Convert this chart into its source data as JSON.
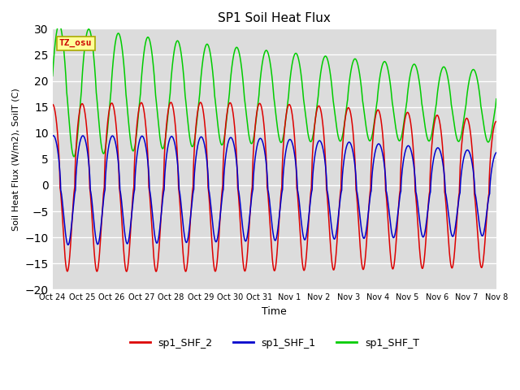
{
  "title": "SP1 Soil Heat Flux",
  "xlabel": "Time",
  "ylabel": "Soil Heat Flux (W/m2), SoilT (C)",
  "ylim": [
    -20,
    30
  ],
  "yticks": [
    -20,
    -15,
    -10,
    -5,
    0,
    5,
    10,
    15,
    20,
    25,
    30
  ],
  "background_color": "#dcdcdc",
  "fig_background": "#ffffff",
  "grid_color": "#ffffff",
  "tz_label": "TZ_osu",
  "tz_text_color": "#cc0000",
  "tz_bg_color": "#ffff99",
  "tz_border_color": "#aaaa00",
  "x_tick_labels": [
    "Oct 24",
    "Oct 25",
    "Oct 26",
    "Oct 27",
    "Oct 28",
    "Oct 29",
    "Oct 30",
    "Oct 31",
    "Nov 1",
    "Nov 2",
    "Nov 3",
    "Nov 4",
    "Nov 5",
    "Nov 6",
    "Nov 7",
    "Nov 8"
  ],
  "legend_colors": [
    "#dd0000",
    "#0000cc",
    "#00cc00"
  ],
  "legend_labels": [
    "sp1_SHF_2",
    "sp1_SHF_1",
    "sp1_SHF_T"
  ],
  "n_points": 4000
}
